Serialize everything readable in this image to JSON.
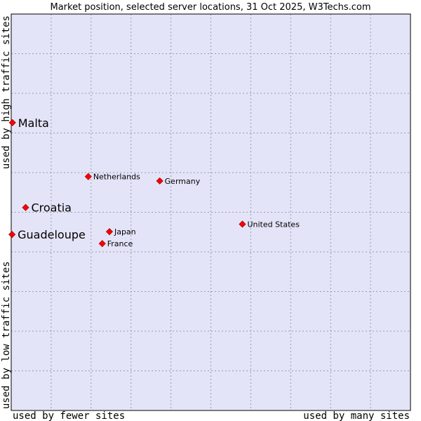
{
  "chart_data": {
    "type": "scatter",
    "title": "Market position, selected server locations, 31 Oct 2025, W3Techs.com",
    "xlabel_left": "used by fewer sites",
    "xlabel_right": "used by many sites",
    "ylabel_bottom": "used by low traffic sites",
    "ylabel_top": "used by high traffic sites",
    "xlim": [
      0,
      100
    ],
    "ylim": [
      0,
      100
    ],
    "grid": true,
    "colors": {
      "plot_background": "#e4e4f8",
      "grid": "#9a9ab0",
      "point": "#ff0000",
      "point_edge": "#a00000"
    },
    "points": [
      {
        "label": "Malta",
        "x": 0.3,
        "y": 72.6,
        "emphasis": true
      },
      {
        "label": "Netherlands",
        "x": 19.3,
        "y": 59.0,
        "emphasis": false
      },
      {
        "label": "Germany",
        "x": 37.2,
        "y": 57.9,
        "emphasis": false
      },
      {
        "label": "Croatia",
        "x": 3.6,
        "y": 51.2,
        "emphasis": true
      },
      {
        "label": "United States",
        "x": 57.9,
        "y": 47.0,
        "emphasis": false
      },
      {
        "label": "Japan",
        "x": 24.6,
        "y": 45.1,
        "emphasis": false
      },
      {
        "label": "Guadeloupe",
        "x": 0.2,
        "y": 44.4,
        "emphasis": true
      },
      {
        "label": "France",
        "x": 22.8,
        "y": 42.1,
        "emphasis": false
      }
    ]
  }
}
